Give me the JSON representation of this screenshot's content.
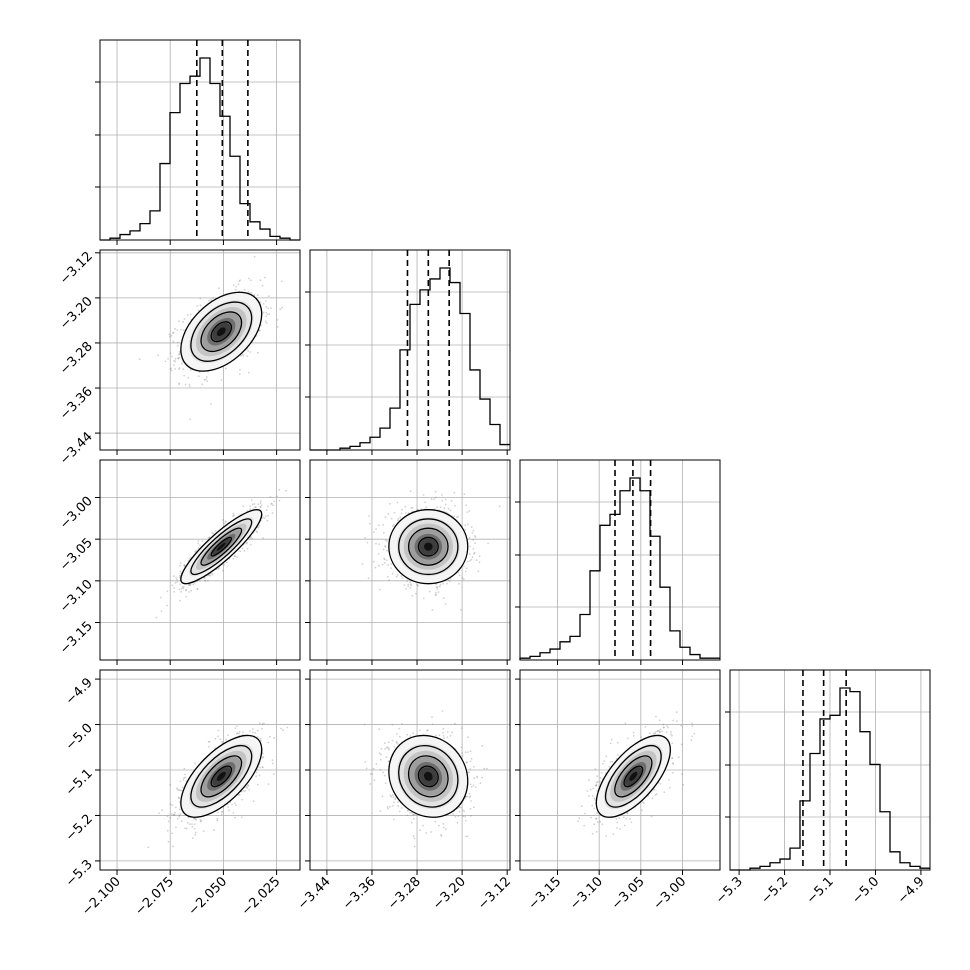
{
  "chart_data": {
    "type": "corner",
    "title": "",
    "n_params": 4,
    "params": [
      {
        "range": [
          -2.108,
          -2.014
        ],
        "ticks": [
          "−2.100",
          "−2.075",
          "−2.050",
          "−2.025"
        ],
        "tick_values": [
          -2.1,
          -2.075,
          -2.05,
          -2.025
        ],
        "mean": -2.051,
        "sd": 0.0095,
        "quantiles": [
          -2.0625,
          -2.0505,
          -2.0385
        ],
        "hist_counts": [
          0.0,
          0.01,
          0.03,
          0.05,
          0.09,
          0.16,
          0.42,
          0.7,
          0.86,
          0.9,
          1.0,
          0.86,
          0.68,
          0.46,
          0.2,
          0.1,
          0.06,
          0.02,
          0.01,
          0.0
        ]
      },
      {
        "range": [
          -3.47,
          -3.115
        ],
        "ticks": [
          "−3.44",
          "−3.36",
          "−3.28",
          "−3.20",
          "−3.12"
        ],
        "tick_values": [
          -3.44,
          -3.36,
          -3.28,
          -3.2,
          -3.12
        ],
        "mean": -3.26,
        "sd": 0.035,
        "quantiles": [
          -3.297,
          -3.26,
          -3.223
        ],
        "hist_counts": [
          0.0,
          0.0,
          0.0,
          0.01,
          0.02,
          0.04,
          0.07,
          0.12,
          0.23,
          0.55,
          0.8,
          0.88,
          0.94,
          1.0,
          0.92,
          0.75,
          0.44,
          0.28,
          0.14,
          0.03
        ]
      },
      {
        "range": [
          -3.195,
          -2.955
        ],
        "ticks": [
          "−3.15",
          "−3.10",
          "−3.05",
          "−3.00"
        ],
        "tick_values": [
          -3.15,
          -3.1,
          -3.05,
          -3.0
        ],
        "mean": -3.059,
        "sd": 0.0222,
        "quantiles": [
          -3.081,
          -3.0595,
          -3.0383
        ],
        "hist_counts": [
          0.01,
          0.02,
          0.04,
          0.06,
          0.1,
          0.13,
          0.25,
          0.49,
          0.74,
          0.8,
          0.93,
          1.0,
          0.93,
          0.68,
          0.4,
          0.16,
          0.07,
          0.03,
          0.01,
          0.01
        ]
      },
      {
        "range": [
          -5.32,
          -4.88
        ],
        "ticks": [
          "−5.3",
          "−5.2",
          "−5.1",
          "−5.0",
          "−4.9"
        ],
        "tick_values": [
          -5.3,
          -5.2,
          -5.1,
          -5.0,
          -4.9
        ],
        "mean": -5.114,
        "sd": 0.045,
        "quantiles": [
          -5.1595,
          -5.114,
          -5.0645
        ],
        "hist_counts": [
          0.0,
          0.0,
          0.01,
          0.02,
          0.04,
          0.06,
          0.12,
          0.38,
          0.64,
          0.83,
          0.85,
          1.0,
          0.98,
          0.76,
          0.58,
          0.32,
          0.1,
          0.04,
          0.02,
          0.01
        ]
      }
    ],
    "correlations": [
      [
        1.0,
        0.45,
        0.88,
        0.65
      ],
      [
        0.45,
        1.0,
        0.0,
        -0.12
      ],
      [
        0.88,
        0.0,
        1.0,
        0.65
      ],
      [
        0.65,
        -0.12,
        0.65,
        1.0
      ]
    ],
    "contour_levels_sigma": [
      0.5,
      1.0,
      1.5,
      2.0
    ],
    "quantile_style": "dashed",
    "grid": true,
    "colors": {
      "line": "#000000",
      "grid": "#b0b0b0",
      "points": "#7f7f7f"
    }
  }
}
